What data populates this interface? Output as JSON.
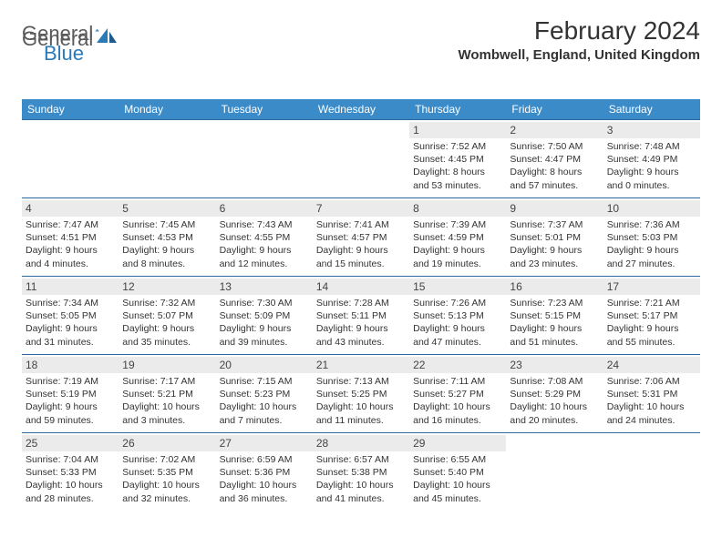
{
  "logo": {
    "text1": "General",
    "text2": "Blue"
  },
  "title": "February 2024",
  "location": "Wombwell, England, United Kingdom",
  "header_bg": "#3b8bc8",
  "border_color": "#2a6aa0",
  "daynum_bg": "#ebebeb",
  "days": [
    "Sunday",
    "Monday",
    "Tuesday",
    "Wednesday",
    "Thursday",
    "Friday",
    "Saturday"
  ],
  "weeks": [
    [
      {
        "n": "",
        "sunrise": "",
        "sunset": "",
        "daylight": ""
      },
      {
        "n": "",
        "sunrise": "",
        "sunset": "",
        "daylight": ""
      },
      {
        "n": "",
        "sunrise": "",
        "sunset": "",
        "daylight": ""
      },
      {
        "n": "",
        "sunrise": "",
        "sunset": "",
        "daylight": ""
      },
      {
        "n": "1",
        "sunrise": "Sunrise: 7:52 AM",
        "sunset": "Sunset: 4:45 PM",
        "daylight": "Daylight: 8 hours and 53 minutes."
      },
      {
        "n": "2",
        "sunrise": "Sunrise: 7:50 AM",
        "sunset": "Sunset: 4:47 PM",
        "daylight": "Daylight: 8 hours and 57 minutes."
      },
      {
        "n": "3",
        "sunrise": "Sunrise: 7:48 AM",
        "sunset": "Sunset: 4:49 PM",
        "daylight": "Daylight: 9 hours and 0 minutes."
      }
    ],
    [
      {
        "n": "4",
        "sunrise": "Sunrise: 7:47 AM",
        "sunset": "Sunset: 4:51 PM",
        "daylight": "Daylight: 9 hours and 4 minutes."
      },
      {
        "n": "5",
        "sunrise": "Sunrise: 7:45 AM",
        "sunset": "Sunset: 4:53 PM",
        "daylight": "Daylight: 9 hours and 8 minutes."
      },
      {
        "n": "6",
        "sunrise": "Sunrise: 7:43 AM",
        "sunset": "Sunset: 4:55 PM",
        "daylight": "Daylight: 9 hours and 12 minutes."
      },
      {
        "n": "7",
        "sunrise": "Sunrise: 7:41 AM",
        "sunset": "Sunset: 4:57 PM",
        "daylight": "Daylight: 9 hours and 15 minutes."
      },
      {
        "n": "8",
        "sunrise": "Sunrise: 7:39 AM",
        "sunset": "Sunset: 4:59 PM",
        "daylight": "Daylight: 9 hours and 19 minutes."
      },
      {
        "n": "9",
        "sunrise": "Sunrise: 7:37 AM",
        "sunset": "Sunset: 5:01 PM",
        "daylight": "Daylight: 9 hours and 23 minutes."
      },
      {
        "n": "10",
        "sunrise": "Sunrise: 7:36 AM",
        "sunset": "Sunset: 5:03 PM",
        "daylight": "Daylight: 9 hours and 27 minutes."
      }
    ],
    [
      {
        "n": "11",
        "sunrise": "Sunrise: 7:34 AM",
        "sunset": "Sunset: 5:05 PM",
        "daylight": "Daylight: 9 hours and 31 minutes."
      },
      {
        "n": "12",
        "sunrise": "Sunrise: 7:32 AM",
        "sunset": "Sunset: 5:07 PM",
        "daylight": "Daylight: 9 hours and 35 minutes."
      },
      {
        "n": "13",
        "sunrise": "Sunrise: 7:30 AM",
        "sunset": "Sunset: 5:09 PM",
        "daylight": "Daylight: 9 hours and 39 minutes."
      },
      {
        "n": "14",
        "sunrise": "Sunrise: 7:28 AM",
        "sunset": "Sunset: 5:11 PM",
        "daylight": "Daylight: 9 hours and 43 minutes."
      },
      {
        "n": "15",
        "sunrise": "Sunrise: 7:26 AM",
        "sunset": "Sunset: 5:13 PM",
        "daylight": "Daylight: 9 hours and 47 minutes."
      },
      {
        "n": "16",
        "sunrise": "Sunrise: 7:23 AM",
        "sunset": "Sunset: 5:15 PM",
        "daylight": "Daylight: 9 hours and 51 minutes."
      },
      {
        "n": "17",
        "sunrise": "Sunrise: 7:21 AM",
        "sunset": "Sunset: 5:17 PM",
        "daylight": "Daylight: 9 hours and 55 minutes."
      }
    ],
    [
      {
        "n": "18",
        "sunrise": "Sunrise: 7:19 AM",
        "sunset": "Sunset: 5:19 PM",
        "daylight": "Daylight: 9 hours and 59 minutes."
      },
      {
        "n": "19",
        "sunrise": "Sunrise: 7:17 AM",
        "sunset": "Sunset: 5:21 PM",
        "daylight": "Daylight: 10 hours and 3 minutes."
      },
      {
        "n": "20",
        "sunrise": "Sunrise: 7:15 AM",
        "sunset": "Sunset: 5:23 PM",
        "daylight": "Daylight: 10 hours and 7 minutes."
      },
      {
        "n": "21",
        "sunrise": "Sunrise: 7:13 AM",
        "sunset": "Sunset: 5:25 PM",
        "daylight": "Daylight: 10 hours and 11 minutes."
      },
      {
        "n": "22",
        "sunrise": "Sunrise: 7:11 AM",
        "sunset": "Sunset: 5:27 PM",
        "daylight": "Daylight: 10 hours and 16 minutes."
      },
      {
        "n": "23",
        "sunrise": "Sunrise: 7:08 AM",
        "sunset": "Sunset: 5:29 PM",
        "daylight": "Daylight: 10 hours and 20 minutes."
      },
      {
        "n": "24",
        "sunrise": "Sunrise: 7:06 AM",
        "sunset": "Sunset: 5:31 PM",
        "daylight": "Daylight: 10 hours and 24 minutes."
      }
    ],
    [
      {
        "n": "25",
        "sunrise": "Sunrise: 7:04 AM",
        "sunset": "Sunset: 5:33 PM",
        "daylight": "Daylight: 10 hours and 28 minutes."
      },
      {
        "n": "26",
        "sunrise": "Sunrise: 7:02 AM",
        "sunset": "Sunset: 5:35 PM",
        "daylight": "Daylight: 10 hours and 32 minutes."
      },
      {
        "n": "27",
        "sunrise": "Sunrise: 6:59 AM",
        "sunset": "Sunset: 5:36 PM",
        "daylight": "Daylight: 10 hours and 36 minutes."
      },
      {
        "n": "28",
        "sunrise": "Sunrise: 6:57 AM",
        "sunset": "Sunset: 5:38 PM",
        "daylight": "Daylight: 10 hours and 41 minutes."
      },
      {
        "n": "29",
        "sunrise": "Sunrise: 6:55 AM",
        "sunset": "Sunset: 5:40 PM",
        "daylight": "Daylight: 10 hours and 45 minutes."
      },
      {
        "n": "",
        "sunrise": "",
        "sunset": "",
        "daylight": ""
      },
      {
        "n": "",
        "sunrise": "",
        "sunset": "",
        "daylight": ""
      }
    ]
  ]
}
